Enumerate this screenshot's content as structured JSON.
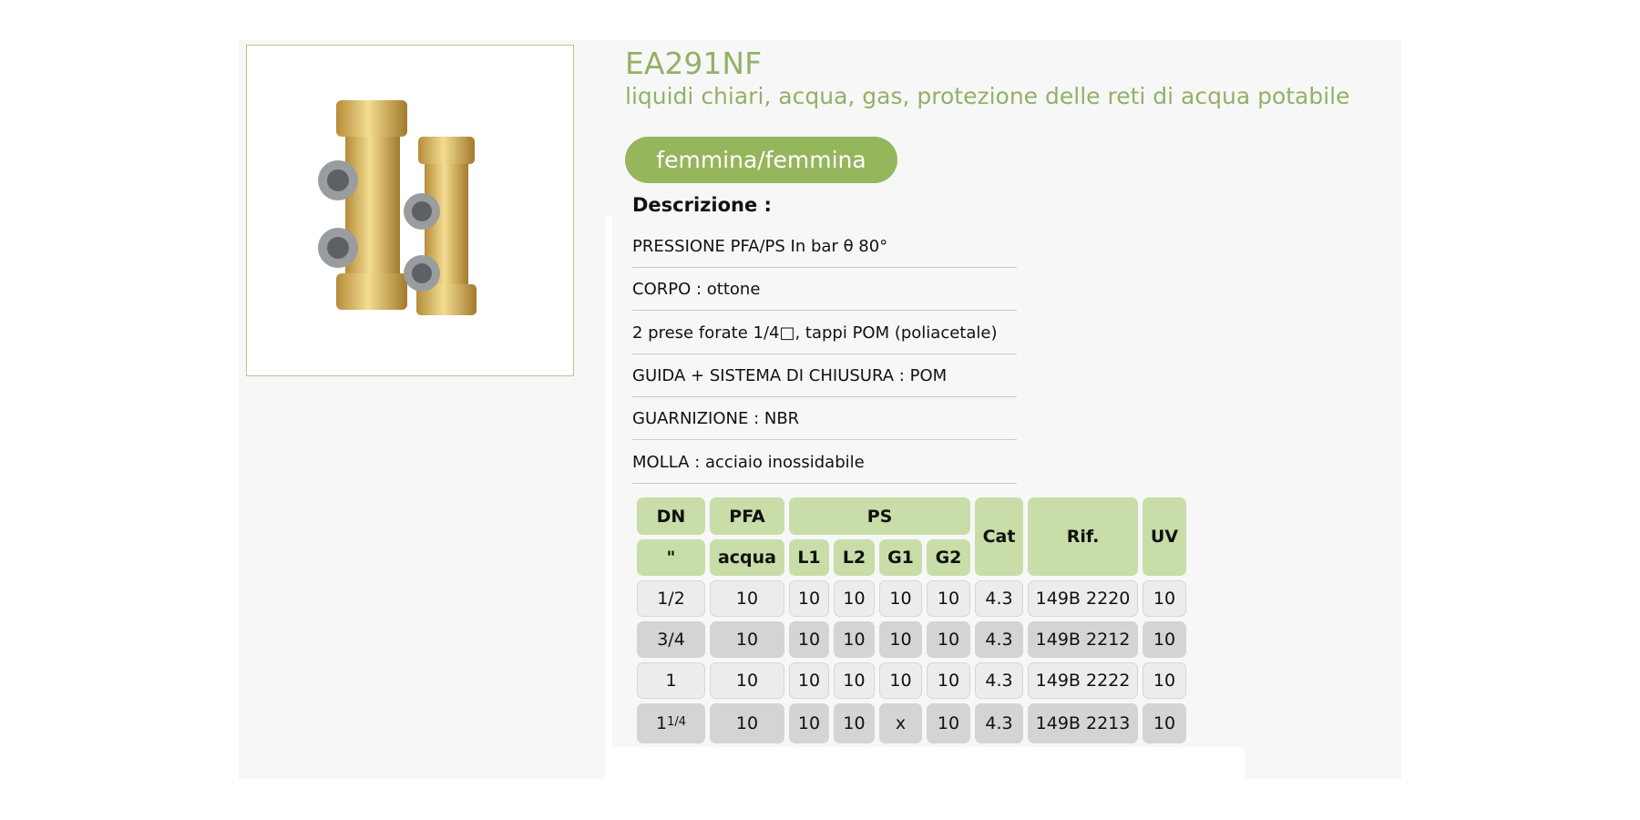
{
  "product": {
    "code": "EA291NF",
    "subtitle": "liquidi chiari, acqua, gas, protezione delle reti di acqua potabile",
    "variant": "femmina/femmina"
  },
  "description": {
    "heading": "Descrizione :",
    "items": [
      "PRESSIONE PFA/PS In bar θ 80°",
      "CORPO : ottone",
      "2 prese forate 1/4□, tappi POM (poliacetale)",
      "GUIDA + SISTEMA DI CHIUSURA : POM",
      "GUARNIZIONE : NBR",
      "MOLLA : acciaio inossidabile"
    ]
  },
  "table": {
    "headers": {
      "dn": "DN",
      "dn_unit": "\"",
      "pfa": "PFA",
      "pfa_sub": "acqua",
      "ps": "PS",
      "l1": "L1",
      "l2": "L2",
      "g1": "G1",
      "g2": "G2",
      "cat": "Cat",
      "rif": "Rif.",
      "uv": "UV"
    },
    "rows": [
      {
        "dn": "1/2",
        "dn_sup": "",
        "pfa": "10",
        "l1": "10",
        "l2": "10",
        "g1": "10",
        "g2": "10",
        "cat": "4.3",
        "rif": "149B 2220",
        "uv": "10"
      },
      {
        "dn": "3/4",
        "dn_sup": "",
        "pfa": "10",
        "l1": "10",
        "l2": "10",
        "g1": "10",
        "g2": "10",
        "cat": "4.3",
        "rif": "149B 2212",
        "uv": "10"
      },
      {
        "dn": "1",
        "dn_sup": "",
        "pfa": "10",
        "l1": "10",
        "l2": "10",
        "g1": "10",
        "g2": "10",
        "cat": "4.3",
        "rif": "149B 2222",
        "uv": "10"
      },
      {
        "dn": "1",
        "dn_sup": "1/4",
        "pfa": "10",
        "l1": "10",
        "l2": "10",
        "g1": "x",
        "g2": "10",
        "cat": "4.3",
        "rif": "149B 2213",
        "uv": "10"
      }
    ]
  },
  "colors": {
    "accent": "#95b65b",
    "title": "#93b166",
    "header_cell": "#c8dda8"
  }
}
